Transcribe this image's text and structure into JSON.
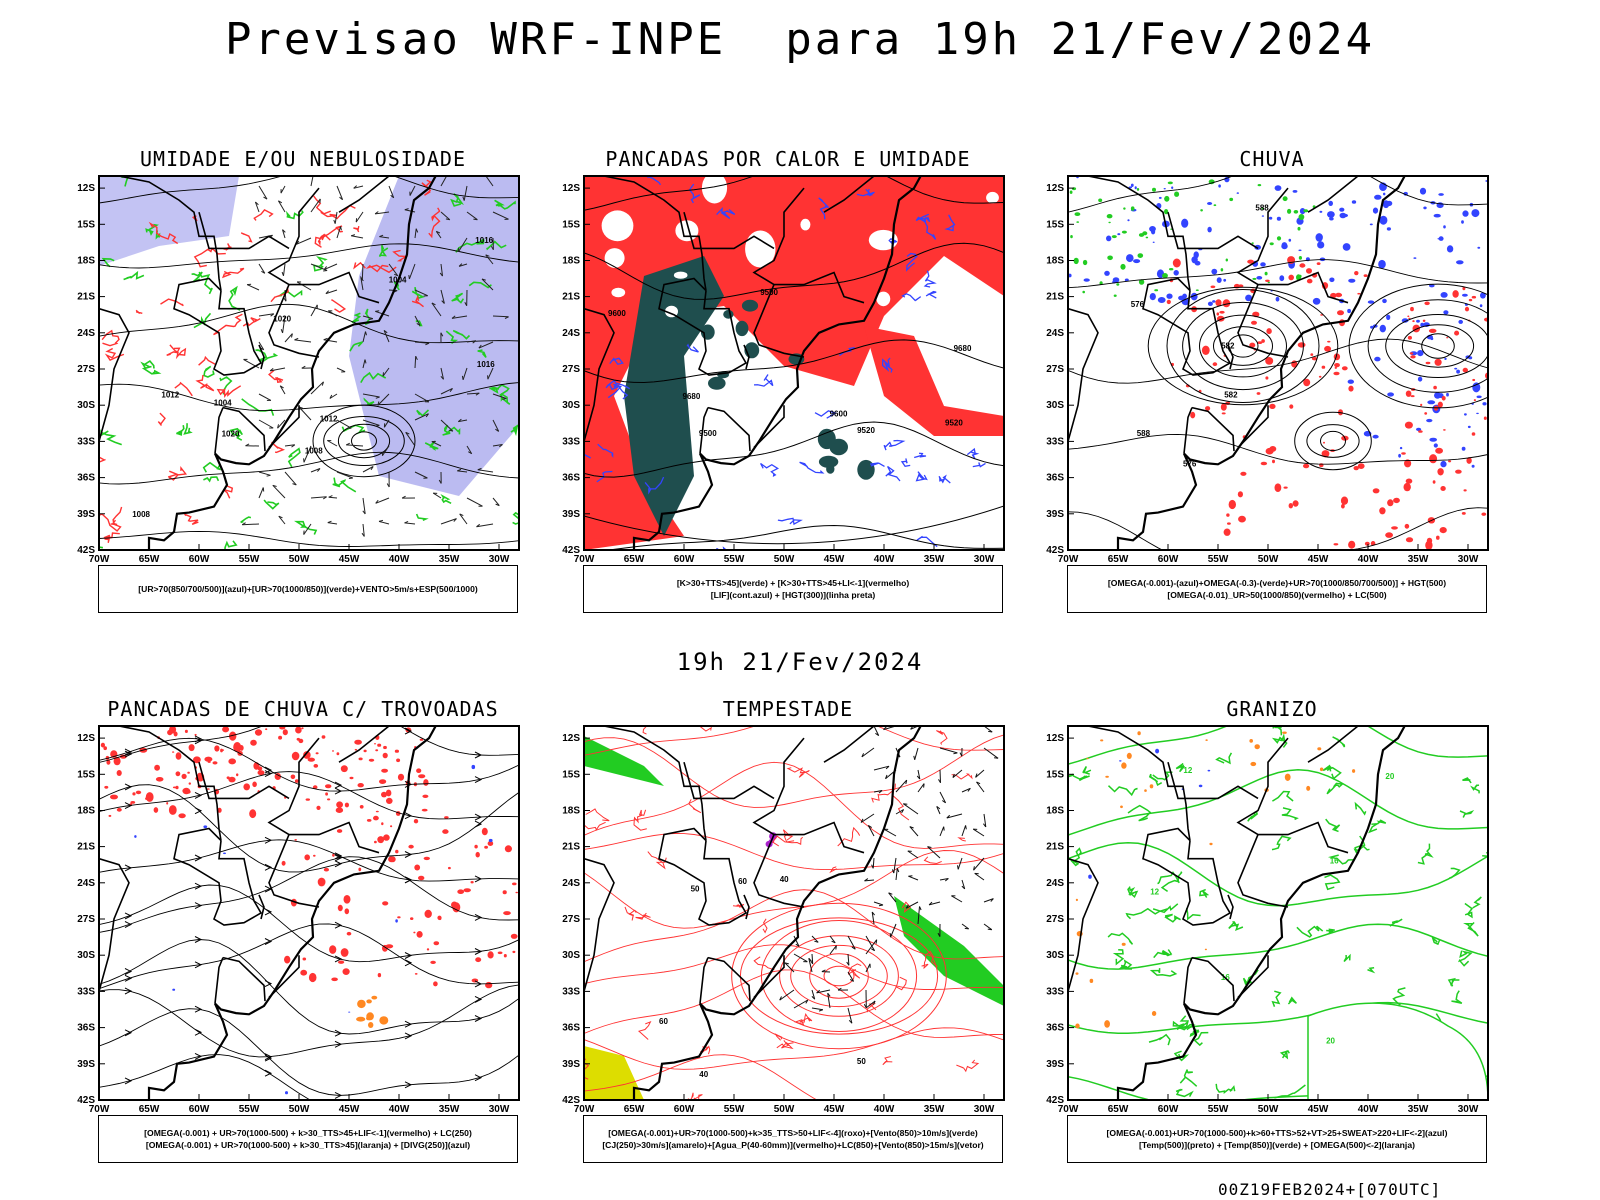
{
  "header": {
    "title": "Previsao WRF-INPE  para 19h 21/Fev/2024"
  },
  "middle_title": "19h 21/Fev/2024",
  "footer_stamp": "00Z19FEB2024+[070UTC]",
  "axes": {
    "lat_labels": [
      "12S",
      "15S",
      "18S",
      "21S",
      "24S",
      "27S",
      "30S",
      "33S",
      "36S",
      "39S",
      "42S"
    ],
    "lon_labels": [
      "70W",
      "65W",
      "60W",
      "55W",
      "50W",
      "45W",
      "40W",
      "35W",
      "30W"
    ]
  },
  "colors": {
    "blue": "#3344ff",
    "green": "#22cc22",
    "red": "#ff3333",
    "darkteal": "#1f4e4e",
    "lavender": "#aaaaee",
    "orange": "#ff8822",
    "yellow": "#dddd00",
    "purple": "#aa22cc"
  },
  "panels": [
    {
      "id": "umidade",
      "title": "UMIDADE E/OU NEBULOSIDADE",
      "legend": [
        "[UR>70(850/700/500)](azul)+[UR>70(1000/850)](verde)+VENTO>5m/s+ESP(500/1000)"
      ],
      "contour_labels": [
        "1004",
        "1008",
        "1012",
        "1016",
        "1020"
      ]
    },
    {
      "id": "pancadas-calor",
      "title": "PANCADAS POR CALOR E UMIDADE",
      "legend": [
        "[K>30+TTS>45](verde) + [K>30+TTS>45+LI<-1](vermelho)",
        "[LIF](cont.azul) + [HGT(300)](linha preta)"
      ],
      "contour_labels": [
        "9500",
        "9520",
        "9600",
        "9680"
      ]
    },
    {
      "id": "chuva",
      "title": "CHUVA",
      "legend": [
        "[OMEGA(-0.001)-(azul)+OMEGA(-0.3)-(verde)+UR>70(1000/850/700/500)] + HGT(500)",
        "[OMEGA(-0.01)_UR>50(1000/850)(vermelho) + LC(500)"
      ],
      "contour_labels": [
        "576",
        "582",
        "588"
      ]
    },
    {
      "id": "trovoadas",
      "title": "PANCADAS DE CHUVA C/ TROVOADAS",
      "legend": [
        "[OMEGA(-0.001) + UR>70(1000-500) + k>30_TTS>45+LIF<-1](vermelho) + LC(250)",
        "[OMEGA(-0.001) + UR>70(1000-500) + k>30_TTS>45](laranja) + [DIVG(250)](azul)"
      ],
      "contour_labels": []
    },
    {
      "id": "tempestade",
      "title": "TEMPESTADE",
      "legend": [
        "[OMEGA(-0.001)+UR>70(1000-500)+k>35_TTS>50+LIF<-4](roxo)+[Vento(850)>10m/s](verde)",
        "[CJ(250)>30m/s](amarelo)+[Agua_P(40-60mm)](vermelho)+LC(850)+[Vento(850)>15m/s](vetor)"
      ],
      "contour_labels": [
        "40",
        "50",
        "60"
      ]
    },
    {
      "id": "granizo",
      "title": "GRANIZO",
      "legend": [
        "[OMEGA(-0.001)+UR>70(1000-500)+k>60+TTS>52+VT>25+SWEAT>220+LIF<-2](azul)",
        "[Temp(500)](preto) + [Temp(850)](verde) + [OMEGA(500)<-2](laranja)"
      ],
      "contour_labels": [
        "12",
        "16",
        "20"
      ]
    }
  ]
}
